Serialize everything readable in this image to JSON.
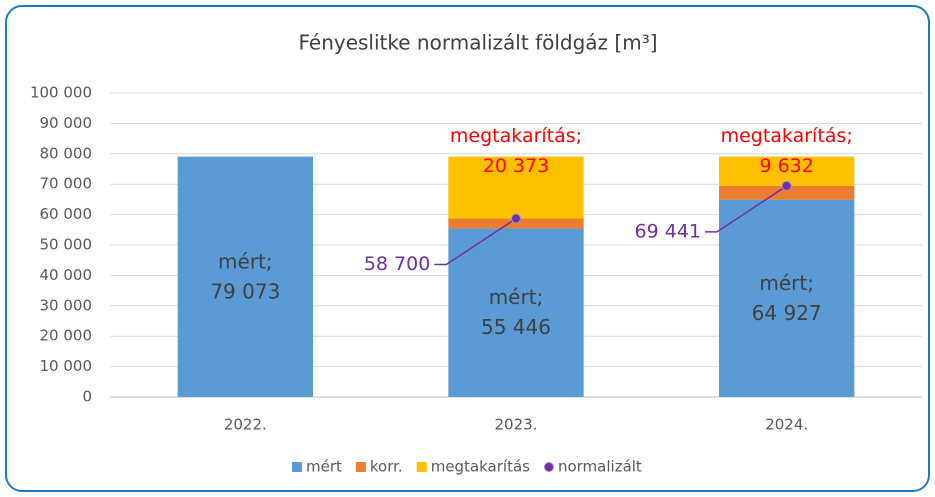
{
  "chart_data": {
    "type": "stacked-bar-with-points",
    "title": "Fényeslitke normalizált földgáz [m³]",
    "categories": [
      "2022.",
      "2023.",
      "2024."
    ],
    "series": [
      {
        "name": "mért",
        "color": "#5b9bd5",
        "values": [
          79073,
          55446,
          64927
        ],
        "value_labels": [
          [
            "mért;",
            "79 073"
          ],
          [
            "mért;",
            "55 446"
          ],
          [
            "mért;",
            "64 927"
          ]
        ]
      },
      {
        "name": "korr.",
        "color": "#ed7d31",
        "values": [
          0,
          3254,
          4514
        ]
      },
      {
        "name": "megtakarítás",
        "color": "#ffc000",
        "values": [
          0,
          20373,
          9632
        ],
        "value_labels": [
          null,
          [
            "megtakarítás;",
            "20 373"
          ],
          [
            "megtakarítás;",
            "9 632"
          ]
        ],
        "label_color": "#ff0000"
      },
      {
        "name": "normalizált",
        "color": "#7030a0",
        "type": "point",
        "values": [
          null,
          58700,
          69441
        ],
        "value_labels": [
          null,
          "58 700",
          "69 441"
        ]
      }
    ],
    "ylim": [
      0,
      100000
    ],
    "yticks": [
      0,
      {
        "value": 10000,
        "label": "10 000"
      },
      {
        "value": 20000,
        "label": "20 000"
      },
      {
        "value": 30000,
        "label": "30 000"
      },
      {
        "value": 40000,
        "label": "40 000"
      },
      {
        "value": 50000,
        "label": "50 000"
      },
      {
        "value": 60000,
        "label": "60 000"
      },
      {
        "value": 70000,
        "label": "70 000"
      },
      {
        "value": 80000,
        "label": "80 000"
      },
      {
        "value": 90000,
        "label": "90 000"
      },
      {
        "value": 100000,
        "label": "100 000"
      }
    ],
    "grid": true,
    "legend": "bottom"
  }
}
